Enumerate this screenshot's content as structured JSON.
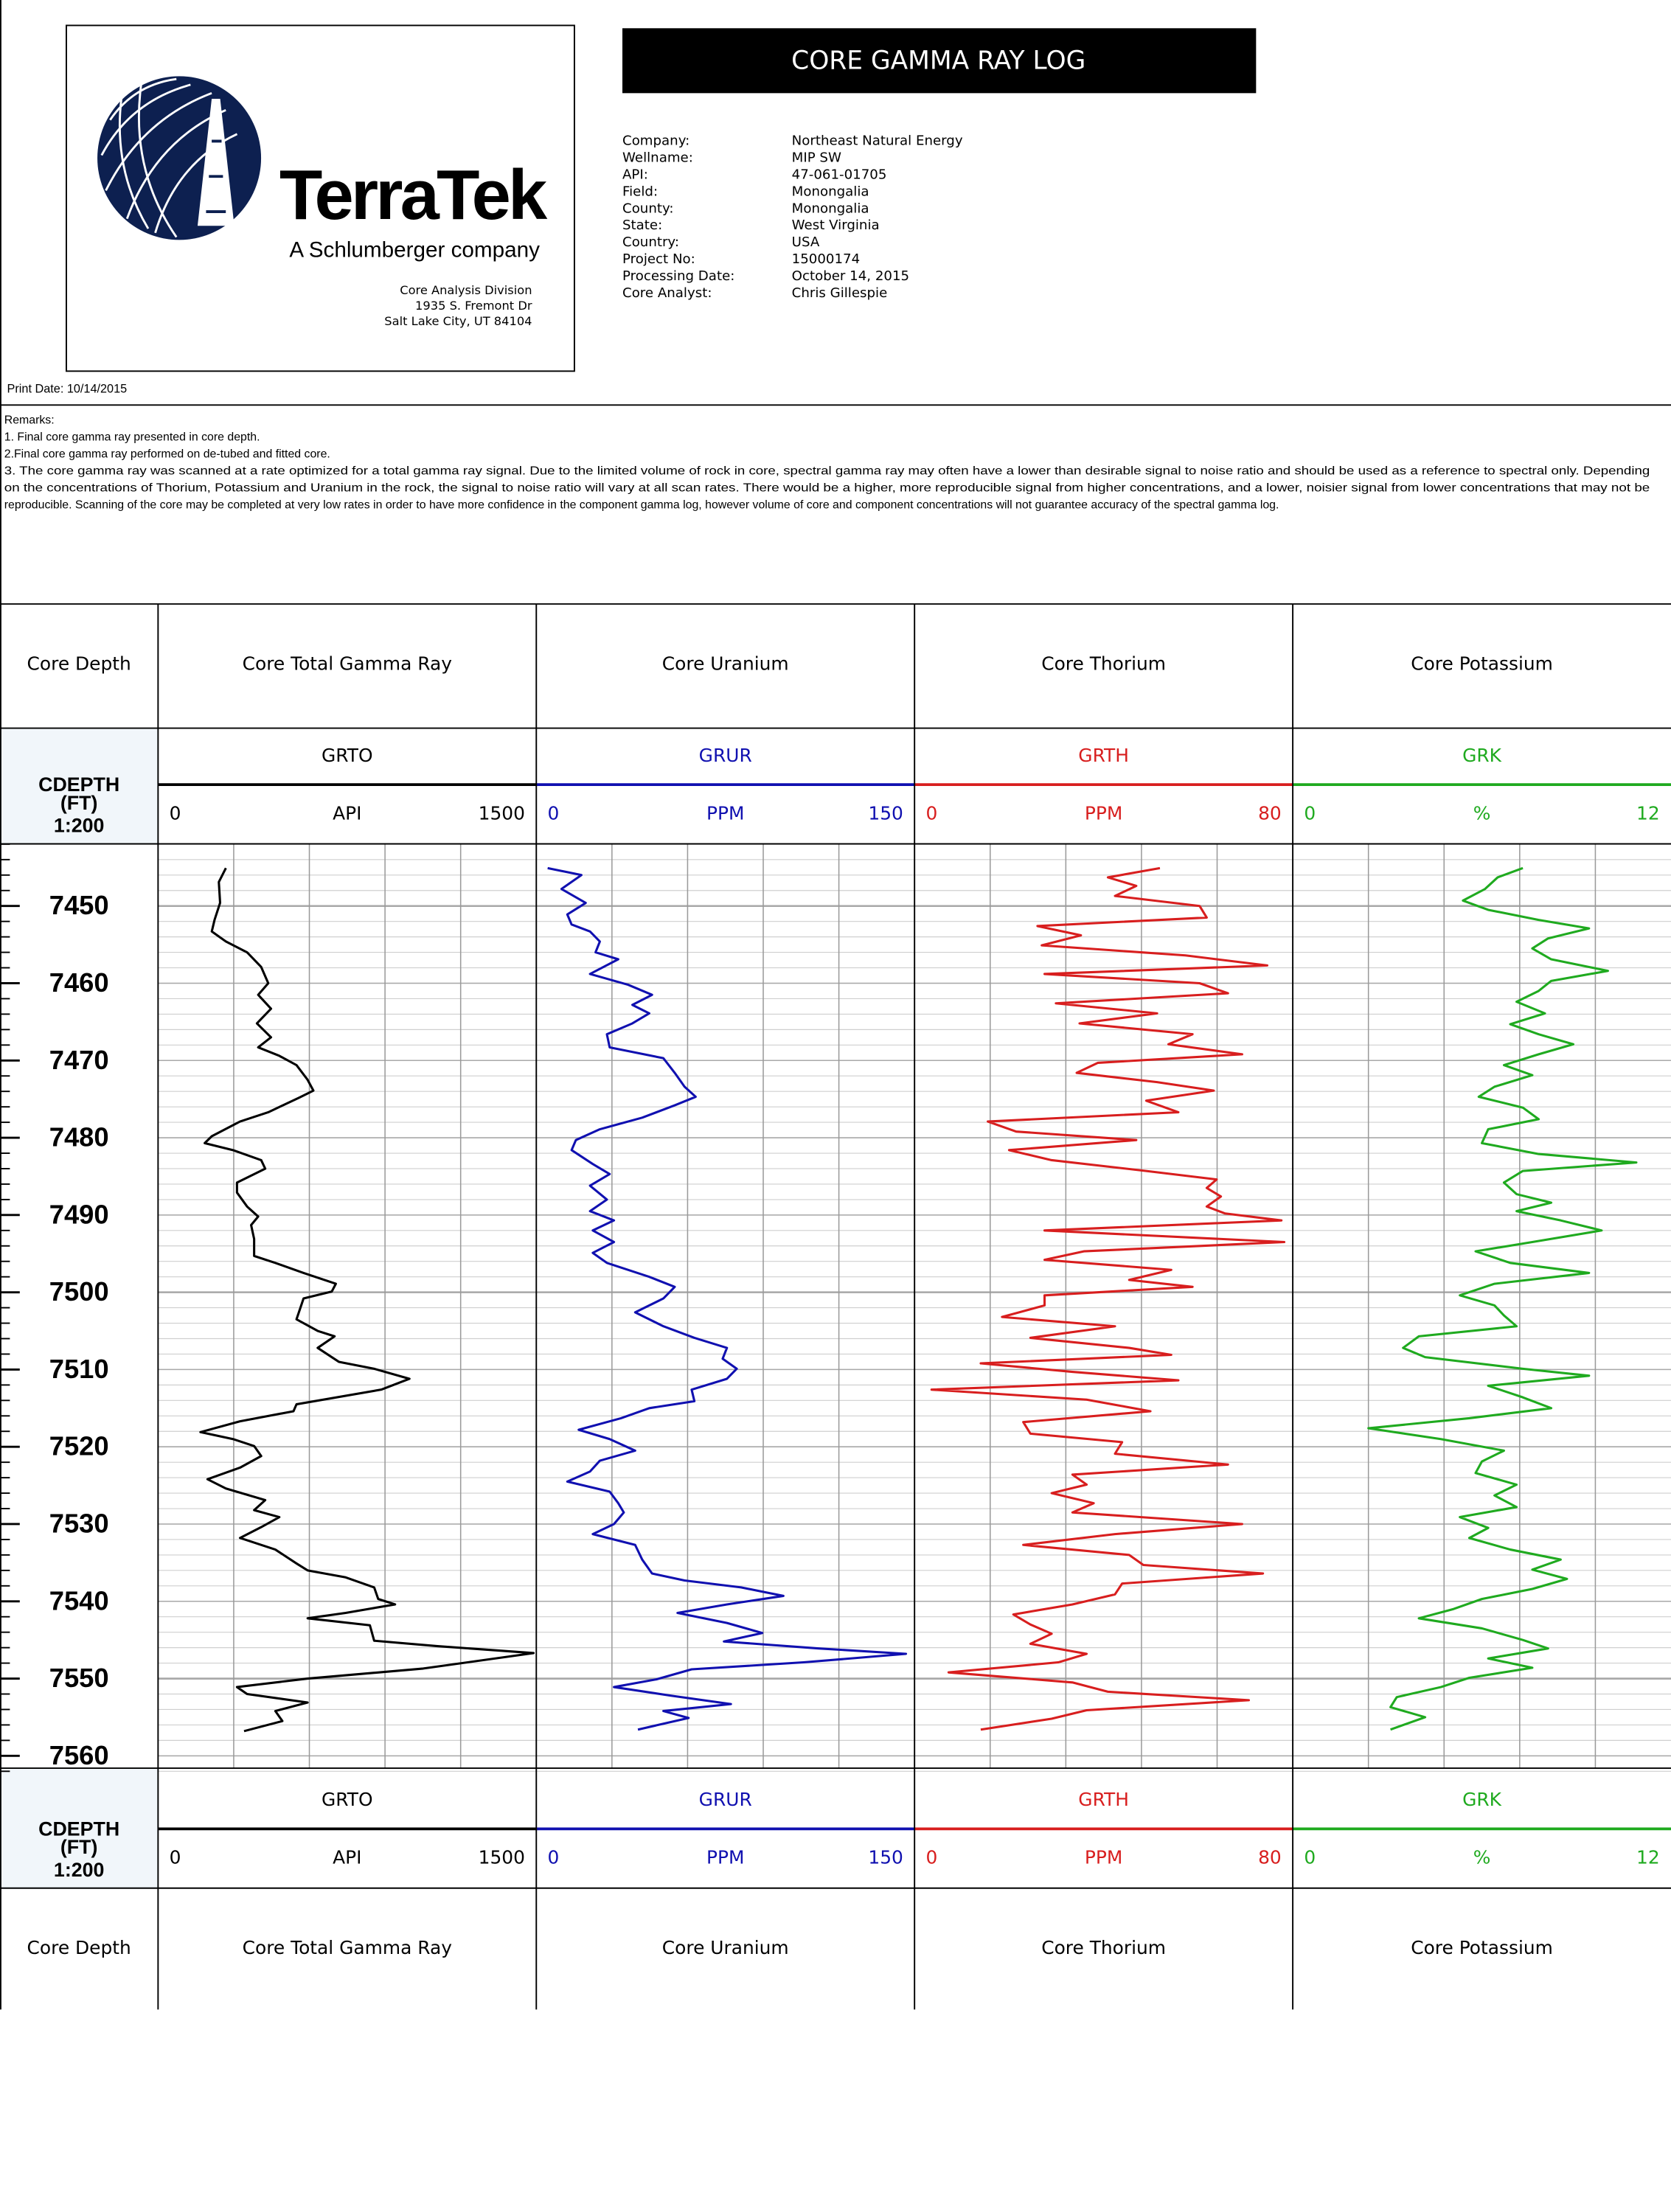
{
  "header": {
    "title": "CORE GAMMA RAY LOG",
    "logo_name": "TerraTek",
    "logo_tagline": "A Schlumberger company",
    "address": [
      "Core Analysis Division",
      "1935 S. Fremont Dr",
      "Salt Lake City, UT 84104"
    ],
    "print_date": "Print Date: 10/14/2015",
    "fields": [
      {
        "label": "Company:",
        "value": "Northeast Natural Energy"
      },
      {
        "label": "Wellname:",
        "value": "MIP SW"
      },
      {
        "label": "API:",
        "value": "47-061-01705"
      },
      {
        "label": "Field:",
        "value": "Monongalia"
      },
      {
        "label": "County:",
        "value": "Monongalia"
      },
      {
        "label": "State:",
        "value": "West Virginia"
      },
      {
        "label": "Country:",
        "value": "USA"
      },
      {
        "label": "Project No:",
        "value": "15000174"
      },
      {
        "label": "Processing Date:",
        "value": "October 14, 2015"
      },
      {
        "label": "Core Analyst:",
        "value": "Chris Gillespie"
      }
    ]
  },
  "remarks": [
    "Remarks:",
    "1. Final core gamma ray presented in core depth.",
    "2.Final core gamma ray performed on de-tubed and fitted core.",
    "3. The core gamma ray was scanned at a rate optimized for a total gamma ray signal.   Due to the limited volume of rock in core, spectral gamma ray may often have a lower than desirable signal to noise ratio and should be used as a reference to spectral only.  Depending",
    "on the concentrations of Thorium, Potassium and Uranium in the rock, the signal to noise ratio will vary at all scan rates.  There would be a higher, more reproducible signal from higher concentrations, and a lower, noisier signal from lower concentrations that may not be",
    "reproducible.  Scanning of the core may be completed at very low rates in order to have more confidence in the component gamma log, however volume of core and component concentrations will not guarantee accuracy of the spectral gamma log."
  ],
  "depth_track": {
    "title": "Core Depth",
    "mnemonic": "CDEPTH",
    "unit": "(FT)",
    "scale": "1:200",
    "lim": [
      7442,
      7562
    ],
    "ticks": [
      7450,
      7460,
      7470,
      7480,
      7490,
      7500,
      7510,
      7520,
      7530,
      7540,
      7550,
      7560
    ],
    "grid_minor": 2,
    "grid_major": 25
  },
  "chart_data": [
    {
      "type": "line",
      "title": "Core Total Gamma Ray",
      "mnemonic": "GRTO",
      "unit": "API",
      "color": "#000000",
      "xlim": [
        7442,
        7562
      ],
      "ylim": [
        0,
        1500
      ],
      "yticks": [
        0,
        1500
      ],
      "grid_divisions": 5,
      "x": [
        7445.1,
        7446.9,
        7449.6,
        7451.8,
        7453.3,
        7454.6,
        7456.0,
        7457.9,
        7460.0,
        7461.5,
        7463.3,
        7465.2,
        7467.0,
        7468.3,
        7469.4,
        7470.6,
        7472.5,
        7473.9,
        7474.8,
        7476.7,
        7477.9,
        7479.8,
        7480.7,
        7481.6,
        7482.9,
        7484.0,
        7485.8,
        7487.1,
        7488.9,
        7490.2,
        7491.3,
        7493.1,
        7495.3,
        7496.2,
        7497.5,
        7498.9,
        7499.9,
        7500.8,
        7503.5,
        7505.0,
        7505.7,
        7507.2,
        7509.0,
        7509.9,
        7511.2,
        7512.6,
        7514.5,
        7515.4,
        7516.7,
        7518.1,
        7519.0,
        7519.9,
        7521.2,
        7522.7,
        7524.2,
        7525.4,
        7526.9,
        7528.2,
        7529.1,
        7530.4,
        7531.8,
        7533.3,
        7535.1,
        7536.0,
        7536.9,
        7538.2,
        7539.7,
        7540.4,
        7541.5,
        7542.2,
        7543.1,
        7545.1,
        7545.8,
        7546.7,
        7548.7,
        7550.0,
        7551.1,
        7552.0,
        7553.1,
        7554.2,
        7555.5,
        7556.8
      ],
      "values": [
        269,
        241,
        246,
        224,
        213,
        269,
        353,
        409,
        437,
        397,
        448,
        392,
        448,
        397,
        481,
        549,
        593,
        616,
        560,
        437,
        325,
        213,
        185,
        297,
        409,
        425,
        313,
        313,
        353,
        397,
        369,
        381,
        381,
        465,
        577,
        705,
        689,
        577,
        549,
        633,
        700,
        633,
        717,
        857,
        997,
        885,
        549,
        537,
        325,
        168,
        297,
        381,
        409,
        325,
        196,
        269,
        425,
        381,
        481,
        409,
        325,
        465,
        549,
        593,
        744,
        857,
        873,
        940,
        744,
        593,
        840,
        857,
        1108,
        1489,
        1052,
        593,
        313,
        353,
        593,
        465,
        493,
        341
      ]
    },
    {
      "type": "line",
      "title": "Core Uranium",
      "mnemonic": "GRUR",
      "unit": "PPM",
      "color": "#1010b0",
      "xlim": [
        7442,
        7562
      ],
      "ylim": [
        0,
        150
      ],
      "yticks": [
        0,
        150
      ],
      "grid_divisions": 5,
      "x": [
        7445.1,
        7446.0,
        7447.8,
        7449.6,
        7451.1,
        7452.4,
        7453.3,
        7454.6,
        7456.0,
        7456.9,
        7458.8,
        7460.2,
        7461.5,
        7462.8,
        7463.9,
        7465.2,
        7466.6,
        7468.3,
        7469.7,
        7471.6,
        7473.4,
        7474.7,
        7475.8,
        7477.4,
        7478.9,
        7480.3,
        7481.6,
        7483.4,
        7484.7,
        7486.2,
        7488.0,
        7489.5,
        7490.7,
        7492.0,
        7493.5,
        7494.9,
        7496.2,
        7498.0,
        7499.3,
        7500.8,
        7502.6,
        7504.4,
        7505.9,
        7507.2,
        7508.6,
        7509.9,
        7511.2,
        7512.6,
        7514.1,
        7515.0,
        7516.3,
        7517.8,
        7519.0,
        7520.5,
        7521.8,
        7523.2,
        7524.5,
        7525.8,
        7527.3,
        7528.5,
        7530.0,
        7531.3,
        7532.7,
        7534.6,
        7536.4,
        7537.3,
        7538.2,
        7539.3,
        7540.4,
        7541.5,
        7542.8,
        7544.1,
        7545.2,
        7546.1,
        7546.8,
        7547.9,
        7548.8,
        7550.1,
        7551.1,
        7552.2,
        7553.3,
        7554.2,
        7555.1,
        7556.6
      ],
      "values": [
        4.5,
        17.9,
        10,
        19.6,
        12.3,
        14,
        21.3,
        25.2,
        23.5,
        32.5,
        21.3,
        36.4,
        45.9,
        38.1,
        44.8,
        38.1,
        28,
        29.1,
        50.4,
        54.9,
        58.8,
        63.2,
        54.9,
        42,
        25.2,
        15.7,
        14,
        22.4,
        29.1,
        21.3,
        28,
        21.3,
        30.8,
        22.4,
        30.8,
        22.4,
        28,
        44.8,
        54.9,
        50.4,
        39.2,
        50.4,
        62.7,
        75.6,
        73.9,
        79.5,
        75.6,
        61.6,
        62.7,
        44.8,
        33.6,
        16.8,
        29.1,
        39.2,
        25.2,
        21.3,
        12.3,
        29.1,
        32.5,
        34.7,
        30.8,
        22.4,
        39.2,
        42,
        45.9,
        58.8,
        81.2,
        98,
        75.6,
        56,
        75.6,
        89.6,
        74.4,
        112,
        146.6,
        106,
        61.6,
        47.6,
        30.8,
        53.2,
        77.2,
        50.4,
        60.4,
        40.3
      ]
    },
    {
      "type": "line",
      "title": "Core Thorium",
      "mnemonic": "GRTH",
      "unit": "PPM",
      "color": "#d81e1e",
      "xlim": [
        7442,
        7562
      ],
      "ylim": [
        0,
        80
      ],
      "yticks": [
        0,
        80
      ],
      "grid_divisions": 5,
      "x": [
        7445.1,
        7446.3,
        7447.4,
        7448.7,
        7450.0,
        7451.5,
        7452.6,
        7453.8,
        7455.1,
        7456.4,
        7457.7,
        7458.8,
        7460.0,
        7461.3,
        7462.6,
        7463.9,
        7465.2,
        7466.6,
        7467.9,
        7469.2,
        7470.3,
        7471.6,
        7472.8,
        7473.9,
        7475.2,
        7476.7,
        7477.9,
        7479.2,
        7480.3,
        7481.6,
        7482.9,
        7484.3,
        7485.4,
        7486.5,
        7487.6,
        7488.9,
        7489.8,
        7490.7,
        7492.0,
        7493.5,
        7494.7,
        7495.8,
        7497.1,
        7498.4,
        7499.3,
        7500.4,
        7501.7,
        7503.2,
        7504.4,
        7505.9,
        7507.2,
        7508.1,
        7509.2,
        7510.3,
        7511.4,
        7512.6,
        7513.9,
        7515.4,
        7516.8,
        7518.3,
        7519.4,
        7520.9,
        7522.3,
        7523.6,
        7524.9,
        7526.0,
        7527.3,
        7528.5,
        7530.0,
        7531.3,
        7532.7,
        7534.0,
        7535.3,
        7536.4,
        7537.7,
        7539.1,
        7540.4,
        7541.7,
        7543.0,
        7544.2,
        7545.5,
        7546.8,
        7547.9,
        7549.2,
        7550.5,
        7551.7,
        7552.8,
        7554.1,
        7555.2,
        7556.6
      ],
      "values": [
        51.9,
        40.9,
        46.9,
        42.4,
        60.3,
        61.8,
        26,
        35.2,
        26.9,
        57.3,
        74.6,
        27.5,
        60.3,
        66.3,
        29.9,
        51.3,
        34.9,
        58.8,
        53.7,
        69.3,
        38.8,
        34.3,
        51.3,
        63.3,
        49,
        55.8,
        15.5,
        21.5,
        46.9,
        20,
        29,
        49,
        63.9,
        61.8,
        64.8,
        61.8,
        65.7,
        77.6,
        27.5,
        78.2,
        35.8,
        27.5,
        54.3,
        45.4,
        58.8,
        27.5,
        27.5,
        18.5,
        42.4,
        24.5,
        45.4,
        54.3,
        14,
        33.4,
        55.8,
        3.6,
        36.4,
        49.9,
        23,
        24.5,
        43.9,
        42.4,
        66.3,
        33.4,
        36.4,
        29,
        37.9,
        33.4,
        69.3,
        42.4,
        23,
        45.4,
        48.4,
        73.7,
        43.9,
        42.4,
        33.4,
        20.9,
        24.5,
        29,
        24.5,
        36.4,
        30.4,
        7.2,
        33.4,
        40.9,
        70.7,
        36.4,
        29,
        14
      ]
    },
    {
      "type": "line",
      "title": "Core Potassium",
      "mnemonic": "GRK",
      "unit": "%",
      "color": "#1faa1f",
      "xlim": [
        7442,
        7562
      ],
      "ylim": [
        0,
        12
      ],
      "yticks": [
        0,
        12
      ],
      "grid_divisions": 5,
      "x": [
        7445.1,
        7446.3,
        7447.8,
        7449.3,
        7450.5,
        7451.8,
        7452.9,
        7454.2,
        7455.5,
        7456.9,
        7458.4,
        7459.7,
        7461.0,
        7462.4,
        7463.9,
        7465.3,
        7466.6,
        7467.9,
        7469.2,
        7470.6,
        7471.9,
        7473.4,
        7474.7,
        7476.1,
        7477.6,
        7478.9,
        7480.7,
        7482.1,
        7483.2,
        7484.3,
        7485.8,
        7487.3,
        7488.4,
        7489.5,
        7490.7,
        7492.0,
        7493.5,
        7494.7,
        7496.2,
        7497.5,
        7498.9,
        7500.4,
        7501.7,
        7503.0,
        7504.4,
        7505.7,
        7507.2,
        7508.4,
        7509.9,
        7510.8,
        7512.1,
        7513.6,
        7515.0,
        7516.3,
        7517.6,
        7519.0,
        7520.5,
        7521.9,
        7523.4,
        7524.9,
        7526.3,
        7527.8,
        7529.1,
        7530.5,
        7531.8,
        7533.3,
        7534.6,
        7535.9,
        7537.1,
        7538.4,
        7539.7,
        7541.0,
        7542.2,
        7543.5,
        7545.0,
        7546.1,
        7547.4,
        7548.6,
        7549.9,
        7551.1,
        7552.4,
        7553.7,
        7555.0,
        7556.6
      ],
      "values": [
        7.3,
        6.5,
        6.1,
        5.4,
        6.2,
        7.8,
        9.4,
        8.1,
        7.6,
        8.2,
        10,
        8.2,
        7.8,
        7.1,
        8,
        6.9,
        7.8,
        8.9,
        7.8,
        6.7,
        7.6,
        6.4,
        5.9,
        7.3,
        7.8,
        6.2,
        6,
        7.8,
        10.9,
        7.3,
        6.7,
        7.1,
        8.2,
        7.1,
        8.5,
        9.8,
        7.6,
        5.8,
        6.9,
        9.4,
        6.4,
        5.3,
        6.4,
        6.7,
        7.1,
        4,
        3.5,
        4.2,
        7.3,
        9.4,
        6.2,
        7.3,
        8.2,
        5.6,
        2.4,
        4.7,
        6.7,
        6,
        5.8,
        7.1,
        6.4,
        7.1,
        5.3,
        6.2,
        5.6,
        6.9,
        8.5,
        7.6,
        8.7,
        7.6,
        6,
        5.1,
        4,
        6,
        7.3,
        8.1,
        6.2,
        7.6,
        5.6,
        4.7,
        3.3,
        3.1,
        4.2,
        3.1
      ]
    }
  ]
}
